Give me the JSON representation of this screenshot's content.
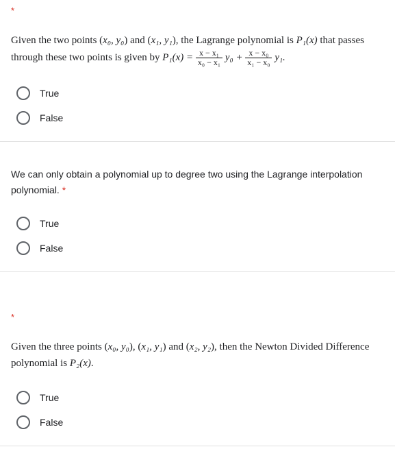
{
  "q1": {
    "required_mark": "*",
    "prompt_1": "Given the two points (",
    "pt0": "x₀, y₀",
    "prompt_2": ") and (",
    "pt1": "x₁, y₁",
    "prompt_3": "), the Lagrange polynomial is ",
    "poly": "P₁(x)",
    "prompt_4": " that passes through these two points is given by ",
    "poly_eq": "P₁(x) = ",
    "f1_num": "x − x₁",
    "f1_den": "x₀ − x₁",
    "y0": " y₀ + ",
    "f2_num": "x − x₀",
    "f2_den": "x₁ − x₀",
    "y1": " y₁.",
    "option_true": "True",
    "option_false": "False"
  },
  "q2": {
    "prompt": "We can only obtain a polynomial up to degree two using the Lagrange interpolation polynomial. ",
    "required_mark": "*",
    "option_true": "True",
    "option_false": "False"
  },
  "q3": {
    "required_mark": "*",
    "prompt_1": "Given the three points (",
    "pt0": "x₀, y₀",
    "prompt_2": "), (",
    "pt1": "x₁, y₁",
    "prompt_3": ") and (",
    "pt2": "x₂, y₂",
    "prompt_4": "), then the Newton Divided Difference polynomial is ",
    "poly": "P₂(x)",
    "period": ".",
    "option_true": "True",
    "option_false": "False"
  },
  "colors": {
    "required": "#d93025",
    "text": "#202124",
    "radio_border": "#5f6368",
    "divider": "#e0e0e0",
    "background": "#ffffff"
  }
}
